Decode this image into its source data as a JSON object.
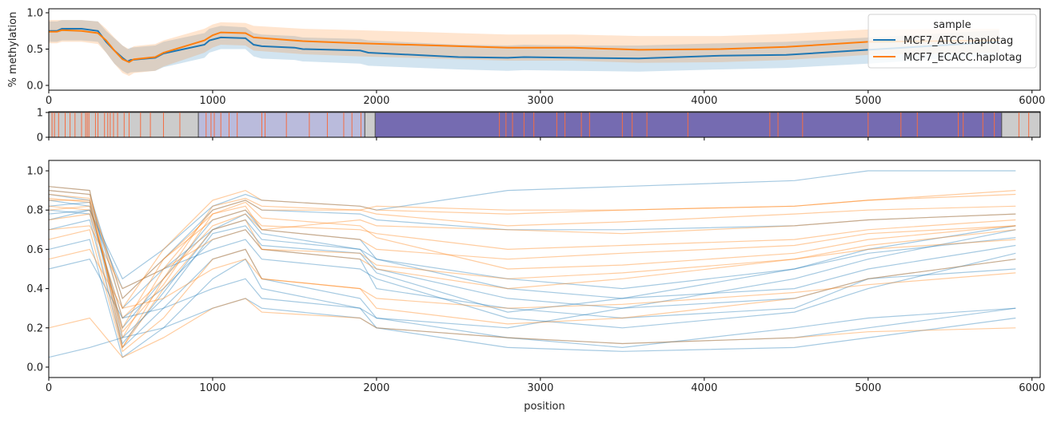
{
  "chart_data": [
    {
      "panel": "top",
      "type": "line",
      "ylabel": "% methylation",
      "xlabel": "",
      "xlim": [
        0,
        6050
      ],
      "ylim": [
        -0.066,
        1.055
      ],
      "xticks": [
        0,
        1000,
        2000,
        3000,
        4000,
        5000,
        6000
      ],
      "yticks": [
        0.0,
        0.5,
        1.0
      ],
      "ytick_labels": [
        "0.0",
        "0.5",
        "1.0"
      ],
      "grid": false,
      "legend": {
        "title": "sample",
        "placement": "top-right"
      },
      "series": [
        {
          "name": "MCF7_ATCC.haplotag",
          "color": "#1f77b4",
          "x": [
            0,
            50,
            80,
            200,
            300,
            350,
            400,
            450,
            480,
            500,
            650,
            700,
            950,
            980,
            1050,
            1200,
            1250,
            1300,
            1500,
            1550,
            1900,
            1950,
            2500,
            2800,
            2900,
            3200,
            3600,
            4100,
            4500,
            5000,
            5800
          ],
          "y": [
            0.75,
            0.75,
            0.78,
            0.78,
            0.75,
            0.6,
            0.48,
            0.38,
            0.33,
            0.35,
            0.38,
            0.44,
            0.56,
            0.62,
            0.66,
            0.65,
            0.56,
            0.54,
            0.52,
            0.5,
            0.48,
            0.45,
            0.39,
            0.38,
            0.39,
            0.38,
            0.37,
            0.41,
            0.42,
            0.49,
            0.6
          ],
          "ci_low": [
            0.6,
            0.6,
            0.62,
            0.62,
            0.6,
            0.45,
            0.3,
            0.2,
            0.16,
            0.18,
            0.2,
            0.25,
            0.38,
            0.45,
            0.5,
            0.5,
            0.4,
            0.37,
            0.35,
            0.33,
            0.3,
            0.27,
            0.22,
            0.2,
            0.21,
            0.2,
            0.19,
            0.22,
            0.24,
            0.3,
            0.42
          ],
          "ci_high": [
            0.88,
            0.88,
            0.9,
            0.9,
            0.88,
            0.75,
            0.65,
            0.55,
            0.5,
            0.52,
            0.55,
            0.6,
            0.72,
            0.78,
            0.82,
            0.8,
            0.72,
            0.7,
            0.68,
            0.66,
            0.64,
            0.62,
            0.56,
            0.55,
            0.56,
            0.55,
            0.55,
            0.58,
            0.6,
            0.66,
            0.76
          ]
        },
        {
          "name": "MCF7_ECACC.haplotag",
          "color": "#ff7f0e",
          "x": [
            0,
            50,
            80,
            200,
            300,
            350,
            400,
            450,
            490,
            520,
            650,
            700,
            950,
            1000,
            1050,
            1200,
            1250,
            1550,
            1900,
            2500,
            2800,
            3200,
            3600,
            4100,
            4500,
            5000,
            5800
          ],
          "y": [
            0.74,
            0.74,
            0.76,
            0.75,
            0.72,
            0.62,
            0.48,
            0.36,
            0.32,
            0.36,
            0.39,
            0.45,
            0.62,
            0.69,
            0.73,
            0.72,
            0.66,
            0.61,
            0.58,
            0.54,
            0.52,
            0.52,
            0.49,
            0.5,
            0.53,
            0.6,
            0.62
          ],
          "ci_low": [
            0.58,
            0.58,
            0.6,
            0.6,
            0.57,
            0.45,
            0.3,
            0.17,
            0.13,
            0.17,
            0.2,
            0.26,
            0.45,
            0.52,
            0.56,
            0.55,
            0.48,
            0.43,
            0.4,
            0.36,
            0.34,
            0.34,
            0.31,
            0.32,
            0.35,
            0.42,
            0.45
          ],
          "ci_high": [
            0.9,
            0.9,
            0.9,
            0.9,
            0.88,
            0.78,
            0.66,
            0.55,
            0.5,
            0.54,
            0.57,
            0.62,
            0.78,
            0.84,
            0.87,
            0.86,
            0.82,
            0.78,
            0.76,
            0.72,
            0.7,
            0.7,
            0.68,
            0.68,
            0.71,
            0.77,
            0.78
          ]
        }
      ]
    },
    {
      "panel": "middle",
      "type": "bar",
      "xlim": [
        0,
        6050
      ],
      "ylim": [
        0,
        1.03
      ],
      "yticks": [
        0,
        1
      ],
      "ytick_labels": [
        "0",
        "1"
      ],
      "segments": [
        {
          "start": 0,
          "end": 913,
          "color": "#cccccc"
        },
        {
          "start": 913,
          "end": 1929,
          "color": "#babbdc"
        },
        {
          "start": 1929,
          "end": 1992,
          "color": "#cccccc"
        },
        {
          "start": 1992,
          "end": 5815,
          "color": "#756bb1"
        },
        {
          "start": 5815,
          "end": 6050,
          "color": "#cccccc"
        }
      ],
      "marker_color": "#f46d43",
      "markers": [
        20,
        35,
        60,
        100,
        130,
        160,
        200,
        225,
        235,
        245,
        285,
        300,
        340,
        360,
        375,
        395,
        420,
        460,
        490,
        560,
        620,
        700,
        800,
        960,
        990,
        1010,
        1050,
        1100,
        1150,
        1300,
        1320,
        1450,
        1590,
        1700,
        1800,
        1850,
        1905,
        2750,
        2790,
        2830,
        2900,
        2960,
        3100,
        3150,
        3250,
        3300,
        3500,
        3560,
        3650,
        3900,
        4400,
        4450,
        4600,
        5000,
        5200,
        5300,
        5550,
        5580,
        5700,
        5770,
        5980,
        5920
      ]
    },
    {
      "panel": "bottom",
      "type": "line",
      "xlabel": "position",
      "ylabel": "",
      "xlim": [
        0,
        6050
      ],
      "ylim": [
        -0.053,
        1.053
      ],
      "xticks": [
        0,
        1000,
        2000,
        3000,
        4000,
        5000,
        6000
      ],
      "yticks": [
        0.0,
        0.2,
        0.4,
        0.6,
        0.8,
        1.0
      ],
      "ytick_labels": [
        "0.0",
        "0.2",
        "0.4",
        "0.6",
        "0.8",
        "1.0"
      ],
      "grid": false,
      "x": [
        0,
        250,
        450,
        700,
        1000,
        1200,
        1300,
        1900,
        2000,
        2800,
        3500,
        4550,
        5000,
        5900
      ],
      "series": [
        {
          "sample": "MCF7_ATCC.haplotag",
          "color": "#1f77b4",
          "traces": [
            [
              0.85,
              0.82,
              0.2,
              0.45,
              0.75,
              0.8,
              0.7,
              0.65,
              0.55,
              0.4,
              0.35,
              0.4,
              0.5,
              0.62
            ],
            [
              0.9,
              0.88,
              0.35,
              0.55,
              0.8,
              0.85,
              0.8,
              0.78,
              0.75,
              0.7,
              0.7,
              0.72,
              0.75,
              0.78
            ],
            [
              0.7,
              0.75,
              0.1,
              0.3,
              0.55,
              0.6,
              0.45,
              0.35,
              0.25,
              0.15,
              0.12,
              0.15,
              0.2,
              0.3
            ],
            [
              0.8,
              0.78,
              0.25,
              0.4,
              0.65,
              0.7,
              0.6,
              0.55,
              0.4,
              0.3,
              0.25,
              0.3,
              0.45,
              0.55
            ],
            [
              0.6,
              0.65,
              0.05,
              0.2,
              0.45,
              0.55,
              0.4,
              0.3,
              0.2,
              0.1,
              0.08,
              0.1,
              0.15,
              0.25
            ],
            [
              0.88,
              0.85,
              0.3,
              0.5,
              0.7,
              0.75,
              0.65,
              0.6,
              0.5,
              0.35,
              0.3,
              0.45,
              0.55,
              0.7
            ],
            [
              0.75,
              0.8,
              0.4,
              0.5,
              0.6,
              0.65,
              0.55,
              0.5,
              0.45,
              0.25,
              0.2,
              0.28,
              0.4,
              0.58
            ],
            [
              0.92,
              0.9,
              0.15,
              0.35,
              0.68,
              0.72,
              0.62,
              0.58,
              0.48,
              0.28,
              0.35,
              0.5,
              0.6,
              0.72
            ],
            [
              0.5,
              0.55,
              0.25,
              0.3,
              0.4,
              0.45,
              0.35,
              0.3,
              0.25,
              0.2,
              0.3,
              0.35,
              0.45,
              0.5
            ],
            [
              0.82,
              0.84,
              0.12,
              0.38,
              0.7,
              0.78,
              0.68,
              0.6,
              0.55,
              0.45,
              0.4,
              0.5,
              0.58,
              0.66
            ],
            [
              0.05,
              0.1,
              0.15,
              0.2,
              0.3,
              0.35,
              0.3,
              0.25,
              0.2,
              0.15,
              0.1,
              0.2,
              0.25,
              0.3
            ],
            [
              0.78,
              0.8,
              0.45,
              0.6,
              0.82,
              0.88,
              0.85,
              0.82,
              0.8,
              0.9,
              0.92,
              0.95,
              1.0,
              1.0
            ]
          ]
        },
        {
          "sample": "MCF7_ECACC.haplotag",
          "color": "#ff7f0e",
          "traces": [
            [
              0.85,
              0.85,
              0.15,
              0.5,
              0.8,
              0.85,
              0.8,
              0.8,
              0.82,
              0.8,
              0.8,
              0.82,
              0.85,
              0.88
            ],
            [
              0.8,
              0.82,
              0.2,
              0.55,
              0.75,
              0.8,
              0.72,
              0.7,
              0.68,
              0.6,
              0.62,
              0.65,
              0.7,
              0.75
            ],
            [
              0.75,
              0.78,
              0.1,
              0.4,
              0.7,
              0.75,
              0.6,
              0.55,
              0.5,
              0.4,
              0.45,
              0.55,
              0.62,
              0.7
            ],
            [
              0.9,
              0.88,
              0.3,
              0.6,
              0.85,
              0.9,
              0.85,
              0.82,
              0.8,
              0.78,
              0.8,
              0.82,
              0.85,
              0.9
            ],
            [
              0.65,
              0.7,
              0.08,
              0.25,
              0.55,
              0.6,
              0.45,
              0.4,
              0.3,
              0.22,
              0.25,
              0.35,
              0.45,
              0.55
            ],
            [
              0.88,
              0.86,
              0.35,
              0.55,
              0.78,
              0.82,
              0.7,
              0.65,
              0.6,
              0.55,
              0.58,
              0.62,
              0.68,
              0.72
            ],
            [
              0.2,
              0.25,
              0.05,
              0.15,
              0.3,
              0.35,
              0.28,
              0.25,
              0.2,
              0.15,
              0.12,
              0.15,
              0.18,
              0.2
            ],
            [
              0.82,
              0.8,
              0.25,
              0.45,
              0.72,
              0.78,
              0.7,
              0.75,
              0.72,
              0.7,
              0.68,
              0.72,
              0.75,
              0.78
            ],
            [
              0.7,
              0.72,
              0.4,
              0.5,
              0.65,
              0.7,
              0.6,
              0.58,
              0.52,
              0.45,
              0.48,
              0.55,
              0.6,
              0.65
            ],
            [
              0.86,
              0.84,
              0.18,
              0.42,
              0.78,
              0.84,
              0.76,
              0.72,
              0.66,
              0.5,
              0.52,
              0.58,
              0.65,
              0.72
            ],
            [
              0.55,
              0.6,
              0.3,
              0.35,
              0.5,
              0.55,
              0.45,
              0.4,
              0.35,
              0.3,
              0.32,
              0.38,
              0.42,
              0.48
            ],
            [
              0.92,
              0.9,
              0.1,
              0.45,
              0.82,
              0.86,
              0.82,
              0.8,
              0.78,
              0.72,
              0.74,
              0.78,
              0.8,
              0.82
            ]
          ]
        }
      ]
    }
  ]
}
